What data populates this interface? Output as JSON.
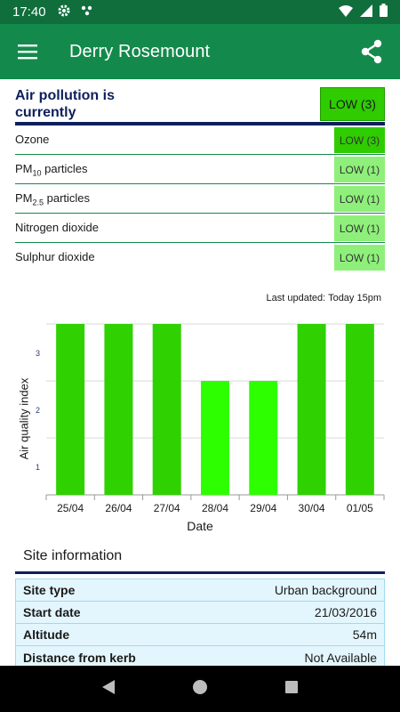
{
  "status": {
    "time": "17:40",
    "icons": [
      "gear-icon",
      "dots-icon",
      "wifi-icon",
      "signal-icon",
      "battery-icon"
    ]
  },
  "app_bar": {
    "title": "Derry Rosemount",
    "menu_icon": "hamburger-menu-icon",
    "share_icon": "share-icon"
  },
  "summary": {
    "headline": "Air pollution is currently",
    "overall": "LOW (3)"
  },
  "pollutants": [
    {
      "name": "Ozone",
      "sub": "",
      "name_after": "",
      "band": "LOW (3)",
      "index": 3
    },
    {
      "name": "PM",
      "sub": "10",
      "name_after": " particles",
      "band": "LOW (1)",
      "index": 1
    },
    {
      "name": "PM",
      "sub": "2.5",
      "name_after": " particles",
      "band": "LOW (1)",
      "index": 1
    },
    {
      "name": "Nitrogen dioxide",
      "sub": "",
      "name_after": "",
      "band": "LOW (1)",
      "index": 1
    },
    {
      "name": "Sulphur dioxide",
      "sub": "",
      "name_after": "",
      "band": "LOW (1)",
      "index": 1
    }
  ],
  "last_updated": "Last updated: Today 15pm",
  "chart_data": {
    "type": "bar",
    "categories": [
      "25/04",
      "26/04",
      "27/04",
      "28/04",
      "29/04",
      "30/04",
      "01/05"
    ],
    "values": [
      3,
      3,
      3,
      2,
      2,
      3,
      3
    ],
    "xlabel": "Date",
    "ylabel": "Air quality index",
    "yticks": [
      1,
      2,
      3
    ],
    "ylim": [
      0,
      3
    ],
    "grid": true,
    "colors": {
      "index_3": "#2fd100",
      "index_2": "#2dff00",
      "gridline": "#d9d9d9",
      "tick": "#2a3a7a"
    }
  },
  "site": {
    "title": "Site information",
    "rows": [
      {
        "key": "Site type",
        "value": "Urban background"
      },
      {
        "key": "Start date",
        "value": "21/03/2016"
      },
      {
        "key": "Altitude",
        "value": "54m"
      },
      {
        "key": "Distance from kerb",
        "value": "Not Available"
      }
    ]
  },
  "nav": {
    "back_icon": "back-triangle-icon",
    "home_icon": "home-circle-icon",
    "recents_icon": "recents-square-icon"
  },
  "colors": {
    "status_bar": "#0f6e3c",
    "app_bar": "#138a4b",
    "headline": "#0d1f5c",
    "band_3": "#2fcc00",
    "band_1": "#8ef07a"
  }
}
